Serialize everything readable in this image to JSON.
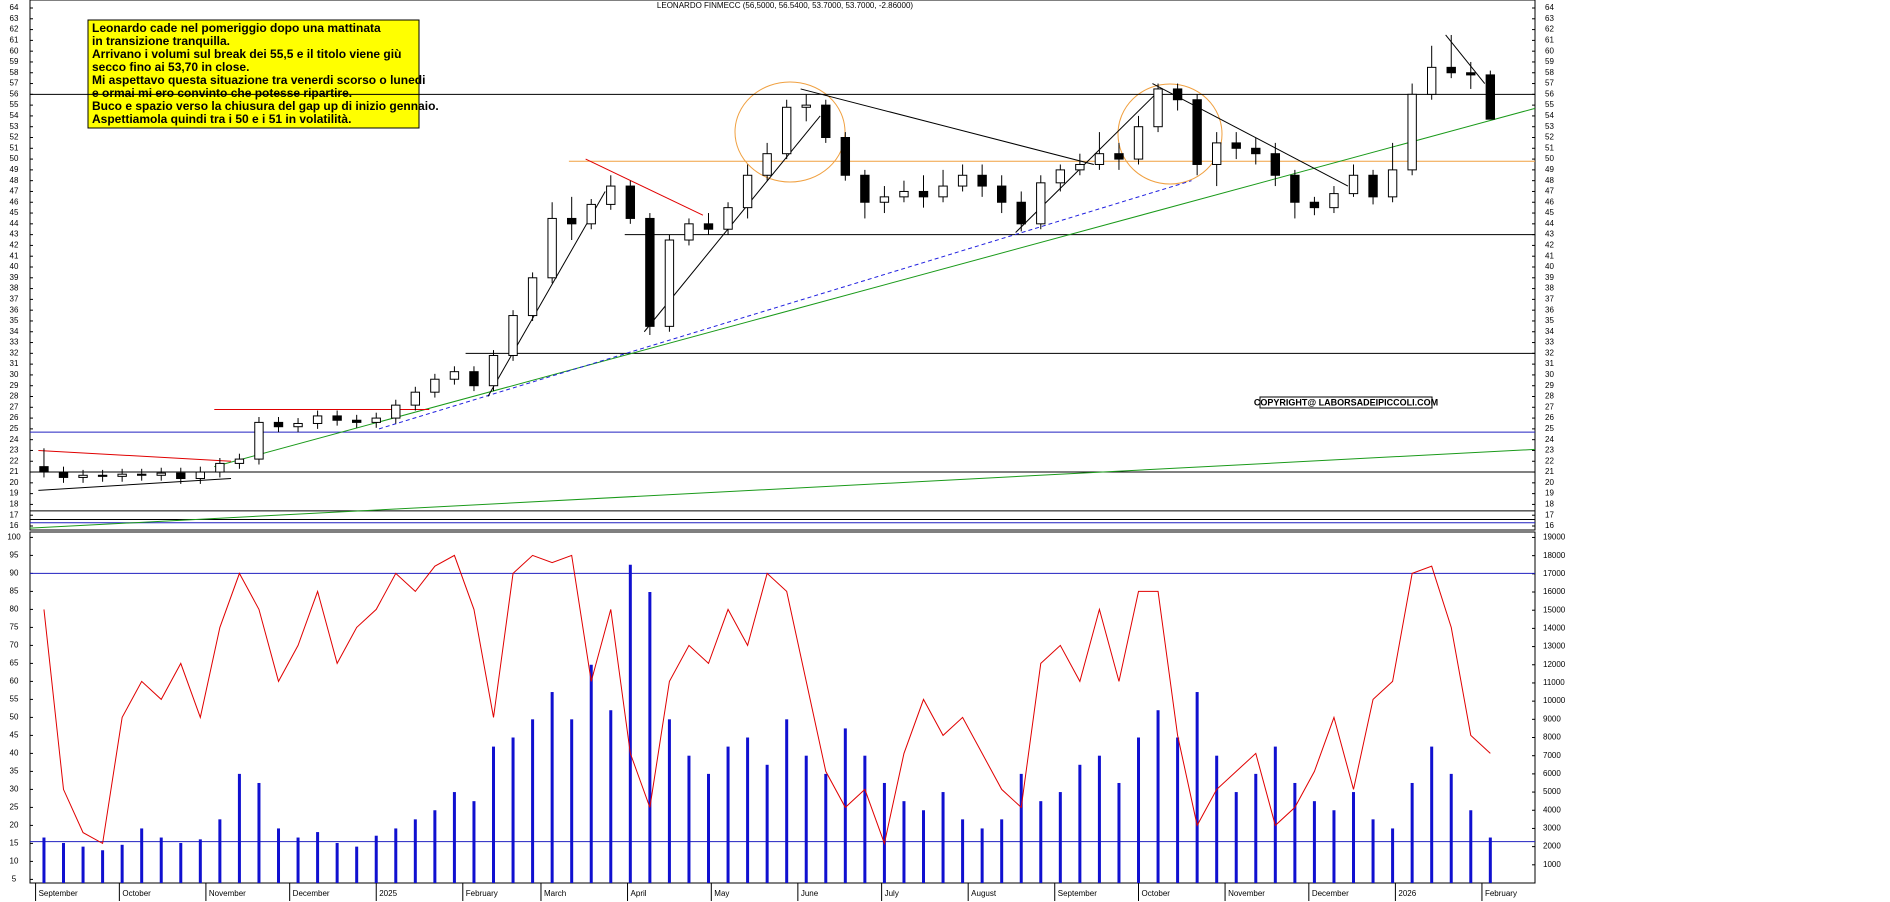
{
  "chart_data": [
    {
      "type": "candlestick",
      "title": "LEONARDO FINMECC (56,5000, 56.5400, 53.7000, 53.7000, -2.86000)",
      "annotation": [
        "Leonardo cade nel pomeriggio dopo una mattinata",
        "in transizione tranquilla.",
        "Arrivano i volumi sul break dei 55,5 e il titolo viene giù",
        "secco fino ai 53,70 in close.",
        "Mi aspettavo questa situazione tra venerdi scorso o lunedi",
        "e ormai mi ero convinto che potesse ripartire.",
        "Buco e spazio verso la chiusura del gap up di inizio gennaio.",
        "Aspettiamola quindi tra i 50 e i 51 in volatilità."
      ],
      "copyright": "COPYRIGHT@ LABORSADEIPICCOLI.COM",
      "x": [
        "2024-09-02",
        "2024-09-09",
        "2024-09-16",
        "2024-09-23",
        "2024-09-30",
        "2024-10-07",
        "2024-10-14",
        "2024-10-21",
        "2024-10-28",
        "2024-11-04",
        "2024-11-11",
        "2024-11-18",
        "2024-11-25",
        "2024-12-02",
        "2024-12-09",
        "2024-12-16",
        "2024-12-23",
        "2024-12-30",
        "2025-01-06",
        "2025-01-13",
        "2025-01-20",
        "2025-01-27",
        "2025-02-03",
        "2025-02-10",
        "2025-02-17",
        "2025-02-24",
        "2025-03-03",
        "2025-03-10",
        "2025-03-17",
        "2025-03-24",
        "2025-03-31",
        "2025-04-07",
        "2025-04-14",
        "2025-04-21",
        "2025-04-28",
        "2025-05-05",
        "2025-05-12",
        "2025-05-19",
        "2025-05-26",
        "2025-06-02",
        "2025-06-09",
        "2025-06-16",
        "2025-06-23",
        "2025-06-30",
        "2025-07-07",
        "2025-07-14",
        "2025-07-21",
        "2025-07-28",
        "2025-08-04",
        "2025-08-11",
        "2025-08-18",
        "2025-08-25",
        "2025-09-01",
        "2025-09-08",
        "2025-09-15",
        "2025-09-22",
        "2025-09-29",
        "2025-10-06",
        "2025-10-13",
        "2025-10-20",
        "2025-10-27",
        "2025-11-03",
        "2025-11-10",
        "2025-11-17",
        "2025-11-24",
        "2025-12-01",
        "2025-12-08",
        "2025-12-15",
        "2025-12-22",
        "2025-12-29",
        "2026-01-05",
        "2026-01-12",
        "2026-01-19",
        "2026-01-26",
        "2026-02-02"
      ],
      "open": [
        21.5,
        21.0,
        20.5,
        20.7,
        20.6,
        20.8,
        20.7,
        20.9,
        20.4,
        21.0,
        21.8,
        22.2,
        25.6,
        25.2,
        25.5,
        26.2,
        25.8,
        25.6,
        26.0,
        27.2,
        28.4,
        29.6,
        30.3,
        29.0,
        31.8,
        35.5,
        39.0,
        44.5,
        44.0,
        45.8,
        47.5,
        44.5,
        34.5,
        42.5,
        44.0,
        43.5,
        45.5,
        48.5,
        50.5,
        54.8,
        55.0,
        52.0,
        48.5,
        46.0,
        46.5,
        47.0,
        46.5,
        47.5,
        48.5,
        47.5,
        46.0,
        44.0,
        47.8,
        49.0,
        49.5,
        50.5,
        50.0,
        53.0,
        56.5,
        55.5,
        49.5,
        51.5,
        51.0,
        50.5,
        48.5,
        46.0,
        45.5,
        46.8,
        48.5,
        46.5,
        49.0,
        56.0,
        58.5,
        58.0,
        57.8
      ],
      "high": [
        23.2,
        21.5,
        21.2,
        21.2,
        21.3,
        21.3,
        21.4,
        21.4,
        21.5,
        22.3,
        22.7,
        26.1,
        26.1,
        26.0,
        26.7,
        26.7,
        26.3,
        26.5,
        27.7,
        28.9,
        30.1,
        30.8,
        30.8,
        32.3,
        36.0,
        39.5,
        46.0,
        46.5,
        46.3,
        48.5,
        48.0,
        45.0,
        43.0,
        44.5,
        45.0,
        46.0,
        49.5,
        51.5,
        55.5,
        56.0,
        55.5,
        52.5,
        49.0,
        47.5,
        48.0,
        48.5,
        49.0,
        49.5,
        49.5,
        48.5,
        47.0,
        48.5,
        49.5,
        50.5,
        52.5,
        51.5,
        54.0,
        57.0,
        57.0,
        56.0,
        52.5,
        52.5,
        52.0,
        51.5,
        49.0,
        46.5,
        47.5,
        49.5,
        49.0,
        51.5,
        57.0,
        60.5,
        61.5,
        59.0,
        58.2
      ],
      "low": [
        20.5,
        20.0,
        20.0,
        20.1,
        20.1,
        20.2,
        20.2,
        19.9,
        19.9,
        20.5,
        21.3,
        21.7,
        24.7,
        24.7,
        25.0,
        25.3,
        25.1,
        25.1,
        25.5,
        26.7,
        27.9,
        29.1,
        28.5,
        28.5,
        31.3,
        35.0,
        38.5,
        42.5,
        43.5,
        45.3,
        44.0,
        33.7,
        34.0,
        42.0,
        43.0,
        43.0,
        44.5,
        48.0,
        50.0,
        53.5,
        51.5,
        48.0,
        44.5,
        45.0,
        46.0,
        45.5,
        46.0,
        47.0,
        46.5,
        45.0,
        43.3,
        43.5,
        47.0,
        48.5,
        49.0,
        49.0,
        49.5,
        52.5,
        54.5,
        48.5,
        47.5,
        50.0,
        49.5,
        47.5,
        44.5,
        44.8,
        45.0,
        46.5,
        45.8,
        46.0,
        48.5,
        55.5,
        57.5,
        56.5,
        53.7
      ],
      "close": [
        21.0,
        20.5,
        20.7,
        20.6,
        20.8,
        20.7,
        20.9,
        20.4,
        21.0,
        21.8,
        22.2,
        25.6,
        25.2,
        25.5,
        26.2,
        25.8,
        25.6,
        26.0,
        27.2,
        28.4,
        29.6,
        30.3,
        29.0,
        31.8,
        35.5,
        39.0,
        44.5,
        44.0,
        45.8,
        47.5,
        44.5,
        34.5,
        42.5,
        44.0,
        43.5,
        45.5,
        48.5,
        50.5,
        54.8,
        55.0,
        52.0,
        48.5,
        46.0,
        46.5,
        47.0,
        46.5,
        47.5,
        48.5,
        47.5,
        46.0,
        44.0,
        47.8,
        49.0,
        49.5,
        50.5,
        50.0,
        53.0,
        56.5,
        55.5,
        49.5,
        51.5,
        51.0,
        50.5,
        48.5,
        46.0,
        45.5,
        46.8,
        48.5,
        46.5,
        49.0,
        56.0,
        58.5,
        58.0,
        57.8,
        53.7
      ],
      "xlim": [
        "2024-08-30",
        "2026-02-20"
      ],
      "ylim": [
        16,
        64
      ],
      "yticks": [
        16,
        17,
        18,
        19,
        20,
        21,
        22,
        23,
        24,
        25,
        26,
        27,
        28,
        29,
        30,
        31,
        32,
        33,
        34,
        35,
        36,
        37,
        38,
        39,
        40,
        41,
        42,
        43,
        44,
        45,
        46,
        47,
        48,
        49,
        50,
        51,
        52,
        53,
        54,
        55,
        56,
        57,
        58,
        59,
        60,
        61,
        62,
        63,
        64
      ],
      "levels": [
        {
          "value": 56,
          "color": "#000000",
          "start": "2024-08-30"
        },
        {
          "value": 43,
          "color": "#000000",
          "start": "2025-03-31"
        },
        {
          "value": 32,
          "color": "#000000",
          "start": "2025-02-02"
        },
        {
          "value": 21,
          "color": "#000000",
          "start": "2024-08-30"
        },
        {
          "value": 17.4,
          "color": "#000000",
          "start": "2024-08-30"
        },
        {
          "value": 16.6,
          "color": "#000000",
          "start": "2024-08-30"
        },
        {
          "value": 24.7,
          "color": "#2020c0",
          "start": "2024-08-30"
        },
        {
          "value": 16.3,
          "color": "#2020c0",
          "start": "2024-08-30"
        },
        {
          "value": 49.8,
          "color": "#f0a040",
          "start": "2025-03-11"
        }
      ],
      "trendlines": [
        {
          "points": [
            [
              "2024-11-04",
              21.5
            ],
            [
              "2026-02-20",
              54.7
            ]
          ],
          "color": "#1a9a1a",
          "dashed": false
        },
        {
          "points": [
            [
              "2024-08-30",
              15.8
            ],
            [
              "2026-02-20",
              23.1
            ]
          ],
          "color": "#1a9a1a",
          "dashed": false
        },
        {
          "points": [
            [
              "2025-01-02",
              25.0
            ],
            [
              "2025-10-20",
              48.0
            ]
          ],
          "color": "#2020e0",
          "dashed": true
        },
        {
          "points": [
            [
              "2025-06-02",
              56.5
            ],
            [
              "2025-09-15",
              49.5
            ]
          ],
          "color": "#000000",
          "dashed": false
        },
        {
          "points": [
            [
              "2025-10-06",
              57.0
            ],
            [
              "2025-12-15",
              47.5
            ]
          ],
          "color": "#000000",
          "dashed": false
        },
        {
          "points": [
            [
              "2025-02-10",
              28.0
            ],
            [
              "2025-03-24",
              47.0
            ]
          ],
          "color": "#000000",
          "dashed": false
        },
        {
          "points": [
            [
              "2025-04-07",
              34.0
            ],
            [
              "2025-06-09",
              54.0
            ]
          ],
          "color": "#000000",
          "dashed": false
        },
        {
          "points": [
            [
              "2025-08-18",
              43.2
            ],
            [
              "2025-10-09",
              56.5
            ]
          ],
          "color": "#000000",
          "dashed": false
        },
        {
          "points": [
            [
              "2024-09-02",
              19.3
            ],
            [
              "2024-11-10",
              20.4
            ]
          ],
          "color": "#000000",
          "dashed": false
        },
        {
          "points": [
            [
              "2025-03-17",
              50.0
            ],
            [
              "2025-04-28",
              44.8
            ]
          ],
          "color": "#e00000",
          "dashed": false
        },
        {
          "points": [
            [
              "2024-09-02",
              23.0
            ],
            [
              "2024-11-10",
              22.0
            ]
          ],
          "color": "#e00000",
          "dashed": false
        },
        {
          "points": [
            [
              "2024-11-04",
              26.8
            ],
            [
              "2025-01-20",
              26.8
            ]
          ],
          "color": "#e00000",
          "dashed": false
        },
        {
          "points": [
            [
              "2026-01-19",
              61.5
            ],
            [
              "2026-02-02",
              57.0
            ]
          ],
          "color": "#000000",
          "dashed": false
        }
      ]
    },
    {
      "type": "bar-line",
      "x": [
        "2024-09-02",
        "2024-09-09",
        "2024-09-16",
        "2024-09-23",
        "2024-09-30",
        "2024-10-07",
        "2024-10-14",
        "2024-10-21",
        "2024-10-28",
        "2024-11-04",
        "2024-11-11",
        "2024-11-18",
        "2024-11-25",
        "2024-12-02",
        "2024-12-09",
        "2024-12-16",
        "2024-12-23",
        "2024-12-30",
        "2025-01-06",
        "2025-01-13",
        "2025-01-20",
        "2025-01-27",
        "2025-02-03",
        "2025-02-10",
        "2025-02-17",
        "2025-02-24",
        "2025-03-03",
        "2025-03-10",
        "2025-03-17",
        "2025-03-24",
        "2025-03-31",
        "2025-04-07",
        "2025-04-14",
        "2025-04-21",
        "2025-04-28",
        "2025-05-05",
        "2025-05-12",
        "2025-05-19",
        "2025-05-26",
        "2025-06-02",
        "2025-06-09",
        "2025-06-16",
        "2025-06-23",
        "2025-06-30",
        "2025-07-07",
        "2025-07-14",
        "2025-07-21",
        "2025-07-28",
        "2025-08-04",
        "2025-08-11",
        "2025-08-18",
        "2025-08-25",
        "2025-09-01",
        "2025-09-08",
        "2025-09-15",
        "2025-09-22",
        "2025-09-29",
        "2025-10-06",
        "2025-10-13",
        "2025-10-20",
        "2025-10-27",
        "2025-11-03",
        "2025-11-10",
        "2025-11-17",
        "2025-11-24",
        "2025-12-01",
        "2025-12-08",
        "2025-12-15",
        "2025-12-22",
        "2025-12-29",
        "2026-01-05",
        "2026-01-12",
        "2026-01-19",
        "2026-01-26",
        "2026-02-02"
      ],
      "series": [
        {
          "type": "bar",
          "axis": "y2",
          "color": "#1010d0",
          "values": [
            2500,
            2200,
            2000,
            1800,
            2100,
            3000,
            2500,
            2200,
            2400,
            3500,
            6000,
            5500,
            3000,
            2500,
            2800,
            2200,
            2000,
            2600,
            3000,
            3500,
            4000,
            5000,
            4500,
            7500,
            8000,
            9000,
            10500,
            9000,
            12000,
            9500,
            17500,
            16000,
            9000,
            7000,
            6000,
            7500,
            8000,
            6500,
            9000,
            7000,
            6000,
            8500,
            7000,
            5500,
            4500,
            4000,
            5000,
            3500,
            3000,
            3500,
            6000,
            4500,
            5000,
            6500,
            7000,
            5500,
            8000,
            9500,
            8000,
            10500,
            7000,
            5000,
            6000,
            7500,
            5500,
            4500,
            4000,
            5000,
            3500,
            3000,
            5500,
            7500,
            6000,
            4000,
            2500
          ]
        },
        {
          "type": "line",
          "color": "#e00000",
          "values": [
            80,
            30,
            18,
            15,
            50,
            60,
            55,
            65,
            50,
            75,
            90,
            80,
            60,
            70,
            85,
            65,
            75,
            80,
            90,
            85,
            92,
            95,
            80,
            50,
            90,
            95,
            93,
            95,
            60,
            80,
            40,
            25,
            60,
            70,
            65,
            80,
            70,
            90,
            85,
            60,
            35,
            25,
            30,
            15,
            40,
            55,
            45,
            50,
            40,
            30,
            25,
            65,
            70,
            60,
            80,
            60,
            85,
            85,
            45,
            20,
            30,
            35,
            40,
            20,
            25,
            35,
            50,
            30,
            55,
            60,
            90,
            92,
            75,
            45,
            40
          ]
        }
      ],
      "xlim": [
        "2024-08-30",
        "2026-02-20"
      ],
      "xticks": [
        {
          "value": "2024-09-01",
          "label": "September"
        },
        {
          "value": "2024-10-01",
          "label": "October"
        },
        {
          "value": "2024-11-01",
          "label": "November"
        },
        {
          "value": "2024-12-01",
          "label": "December"
        },
        {
          "value": "2025-01-01",
          "label": "2025"
        },
        {
          "value": "2025-02-01",
          "label": "February"
        },
        {
          "value": "2025-03-01",
          "label": "March"
        },
        {
          "value": "2025-04-01",
          "label": "April"
        },
        {
          "value": "2025-05-01",
          "label": "May"
        },
        {
          "value": "2025-06-01",
          "label": "June"
        },
        {
          "value": "2025-07-01",
          "label": "July"
        },
        {
          "value": "2025-08-01",
          "label": "August"
        },
        {
          "value": "2025-09-01",
          "label": "September"
        },
        {
          "value": "2025-10-01",
          "label": "October"
        },
        {
          "value": "2025-11-01",
          "label": "November"
        },
        {
          "value": "2025-12-01",
          "label": "December"
        },
        {
          "value": "2026-01-01",
          "label": "2026"
        },
        {
          "value": "2026-02-01",
          "label": "February"
        }
      ],
      "ylim": [
        4,
        101.5
      ],
      "yticks": [
        5,
        10,
        15,
        20,
        25,
        30,
        35,
        40,
        45,
        50,
        55,
        60,
        65,
        70,
        75,
        80,
        85,
        90,
        95,
        100
      ],
      "y2lim": [
        0,
        19300
      ],
      "y2ticks": [
        1000,
        2000,
        3000,
        4000,
        5000,
        6000,
        7000,
        8000,
        9000,
        10000,
        11000,
        12000,
        13000,
        14000,
        15000,
        16000,
        17000,
        18000,
        19000
      ],
      "levels": [
        {
          "value": 90,
          "color": "#2020c0"
        },
        {
          "value": 15.5,
          "color": "#2020c0"
        }
      ]
    }
  ]
}
